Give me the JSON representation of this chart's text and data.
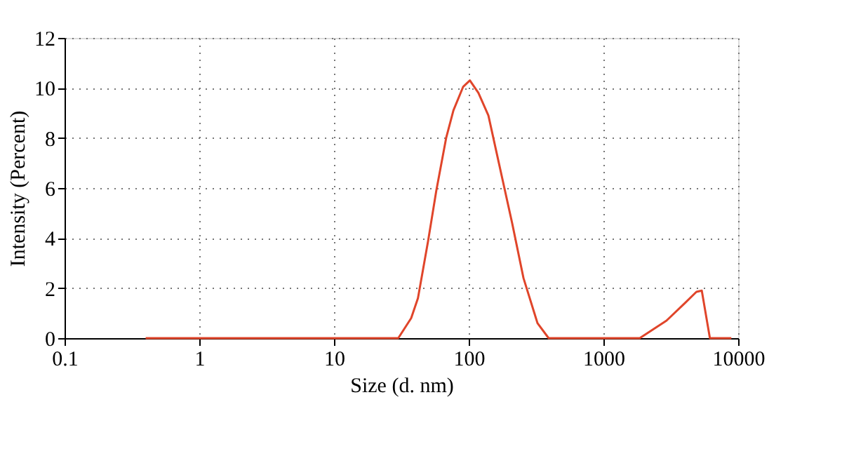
{
  "chart_data": {
    "type": "line",
    "xlabel": "Size (d. nm)",
    "ylabel": "Intensity (Percent)",
    "log": "x",
    "grid": true,
    "marker": "none",
    "line_style": "solid",
    "xlim": [
      0.1,
      10000
    ],
    "xticks": [
      0.1,
      1,
      10,
      100,
      1000,
      10000
    ],
    "ylim": [
      0,
      12
    ],
    "yticks": [
      0,
      2,
      4,
      6,
      8,
      10,
      12
    ],
    "series": [
      {
        "color": "#e0452a",
        "x": [
          0.4,
          30,
          37.4,
          42,
          50,
          57.5,
          68,
          77,
          91,
          102,
          118,
          140,
          169,
          210,
          255,
          324,
          392,
          1860,
          2940,
          4020,
          4900,
          5370,
          6170,
          8900
        ],
        "values": [
          0,
          0,
          0.8,
          1.6,
          3.9,
          5.9,
          8.0,
          9.1,
          10.05,
          10.3,
          9.8,
          8.9,
          6.9,
          4.6,
          2.4,
          0.6,
          0,
          0,
          0.7,
          1.4,
          1.85,
          1.9,
          0,
          0
        ]
      }
    ]
  }
}
